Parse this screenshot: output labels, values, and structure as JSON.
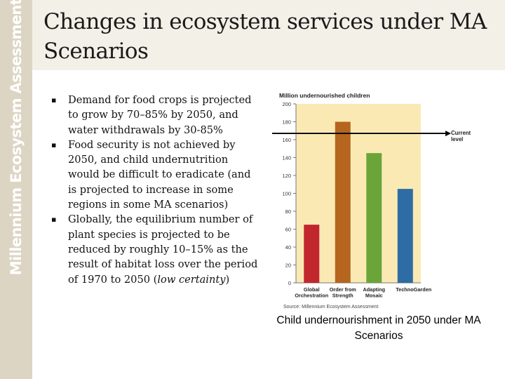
{
  "sidebar": {
    "text": "Millennium Ecosystem Assessment"
  },
  "title": "Changes in ecosystem services under MA Scenarios",
  "bullets": [
    {
      "parts": [
        {
          "text": "Demand for food crops is projected to grow by 70–85% by 2050, and water withdrawals by 30-85%"
        }
      ]
    },
    {
      "parts": [
        {
          "text": "Food security is not achieved by 2050, and child undernutrition would be difficult to eradicate (and is projected to increase in some regions in some MA scenarios)"
        }
      ]
    },
    {
      "parts": [
        {
          "text": "Globally, the equilibrium number of plant species is projected to be reduced by roughly 10–15% as the result of habitat loss over the period of 1970 to 2050 ("
        },
        {
          "text": "low certainty",
          "italic": true
        },
        {
          "text": ")"
        }
      ]
    }
  ],
  "bullet_marker": "▪",
  "chart_data": {
    "type": "bar",
    "title": "Million undernourished children",
    "categories": [
      [
        "Global",
        "Orchestration"
      ],
      [
        "Order from",
        "Strength"
      ],
      [
        "Adapting",
        "Mosaic"
      ],
      [
        "TechnoGarden"
      ]
    ],
    "values": [
      65,
      180,
      145,
      105
    ],
    "colors": [
      "#c1272d",
      "#b5651d",
      "#6ba53a",
      "#2e6da4"
    ],
    "ylim": [
      0,
      200
    ],
    "yticks": [
      0,
      20,
      40,
      60,
      80,
      100,
      120,
      140,
      160,
      180,
      200
    ],
    "reference_line": {
      "value": 167,
      "label": [
        "Current",
        "level"
      ],
      "color": "#000000"
    },
    "source": "Source: Millennium Ecosystem Assessment",
    "plot_bg": "#fbe9b4",
    "grid": false
  },
  "caption": "Child undernourishment in 2050 under MA Scenarios"
}
